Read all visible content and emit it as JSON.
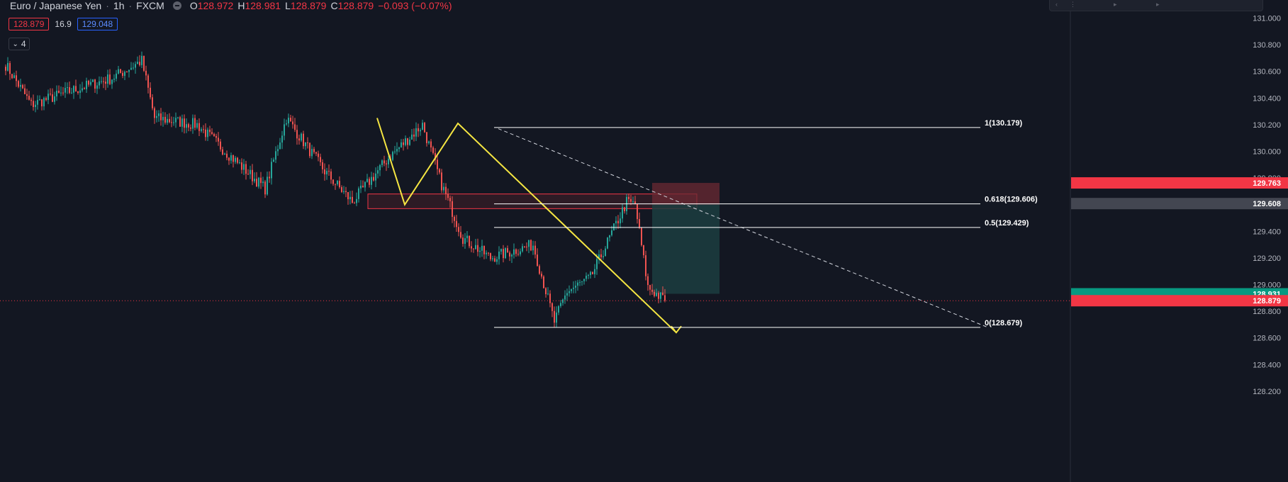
{
  "header": {
    "symbol": "Euro / Japanese Yen",
    "separator": "·",
    "interval": "1h",
    "exchange": "FXCM",
    "o_label": "O",
    "o_value": "128.972",
    "h_label": "H",
    "h_value": "128.981",
    "l_label": "L",
    "l_value": "128.879",
    "c_label": "C",
    "c_value": "128.879",
    "change": "−0.093 (−0.07%)"
  },
  "trade_panel": {
    "sell": "128.879",
    "spread": "16.9",
    "buy": "129.048"
  },
  "indicators": {
    "count": "4"
  },
  "colors": {
    "background": "#131722",
    "up": "#26a69a",
    "down": "#ef5350",
    "zigzag": "#f5e642",
    "fib": "#ffffff",
    "zone_border": "#f23645",
    "stop_zone": "#6b2a33",
    "target_zone": "#1c3d40",
    "price_tag_red": "#f23645",
    "price_tag_gray": "#434651",
    "price_tag_green": "#089981"
  },
  "axis_labels": [
    "131.000",
    "130.800",
    "130.600",
    "130.400",
    "130.200",
    "130.000",
    "129.800",
    "129.600",
    "129.400",
    "129.200",
    "129.000",
    "128.800",
    "128.600",
    "128.400",
    "128.200"
  ],
  "fib_labels": [
    {
      "level": "1",
      "price": 130.179,
      "text": "1(130.179)"
    },
    {
      "level": "0.618",
      "price": 129.606,
      "text": "0.618(129.606)"
    },
    {
      "level": "0.5",
      "price": 129.429,
      "text": "0.5(129.429)"
    },
    {
      "level": "0",
      "price": 128.679,
      "text": "0(128.679)"
    }
  ],
  "price_tags": [
    {
      "text": "129.763",
      "price": 129.763,
      "color": "#f23645"
    },
    {
      "text": "129.608",
      "price": 129.608,
      "color": "#434651"
    },
    {
      "text": "128.931",
      "price": 128.931,
      "color": "#089981"
    },
    {
      "text": "128.879",
      "price": 128.879,
      "color": "#f23645"
    }
  ],
  "chart_data": {
    "type": "candlestick",
    "symbol": "EURJPY",
    "interval": "1h",
    "ylim": [
      128.1,
      131.1
    ],
    "y_ticks": [
      131.0,
      130.8,
      130.6,
      130.4,
      130.2,
      130.0,
      129.8,
      129.6,
      129.4,
      129.2,
      129.0,
      128.8,
      128.6,
      128.4,
      128.2
    ],
    "last_price": 128.879,
    "key_prices": [
      {
        "bar": 0,
        "price": 130.65
      },
      {
        "bar": 12,
        "price": 130.35
      },
      {
        "bar": 30,
        "price": 130.45
      },
      {
        "bar": 50,
        "price": 130.55
      },
      {
        "bar": 64,
        "price": 130.68
      },
      {
        "bar": 70,
        "price": 130.25
      },
      {
        "bar": 90,
        "price": 130.2
      },
      {
        "bar": 110,
        "price": 129.9
      },
      {
        "bar": 122,
        "price": 129.72
      },
      {
        "bar": 132,
        "price": 130.25
      },
      {
        "bar": 150,
        "price": 129.85
      },
      {
        "bar": 163,
        "price": 129.62
      },
      {
        "bar": 180,
        "price": 129.95
      },
      {
        "bar": 196,
        "price": 130.2
      },
      {
        "bar": 205,
        "price": 129.75
      },
      {
        "bar": 215,
        "price": 129.35
      },
      {
        "bar": 228,
        "price": 129.2
      },
      {
        "bar": 248,
        "price": 129.3
      },
      {
        "bar": 258,
        "price": 128.72
      },
      {
        "bar": 264,
        "price": 128.95
      },
      {
        "bar": 275,
        "price": 129.05
      },
      {
        "bar": 292,
        "price": 129.62
      },
      {
        "bar": 296,
        "price": 129.6
      },
      {
        "bar": 302,
        "price": 128.98
      },
      {
        "bar": 310,
        "price": 128.879
      }
    ],
    "zigzag": [
      {
        "bar": 132,
        "price": 130.25
      },
      {
        "bar": 163,
        "price": 129.6
      },
      {
        "bar": 196,
        "price": 130.21
      },
      {
        "bar": 259,
        "price": 128.64
      }
    ],
    "trendline": [
      {
        "bar": 190,
        "price": 130.17
      },
      {
        "bar": 390,
        "price": 128.68
      }
    ],
    "fib_levels": [
      130.179,
      129.606,
      129.429,
      128.679
    ],
    "supply_zone": {
      "top": 129.68,
      "bottom": 129.57,
      "from_bar": 158,
      "to_bar": 325
    },
    "position": {
      "entry": 128.931,
      "stop": 129.763,
      "target_low": 128.931,
      "from_bar": 300,
      "to_bar": 330
    }
  }
}
